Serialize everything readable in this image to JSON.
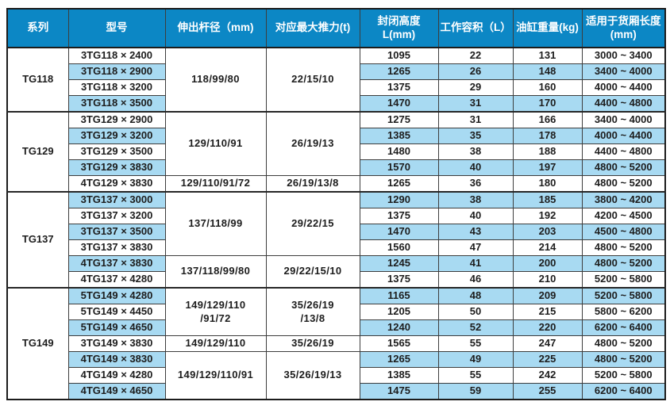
{
  "colors": {
    "header_bg": "#0c87c5",
    "stripe_bg": "#a8daf2",
    "border": "#3d3d3d",
    "text": "#1d1d1d",
    "header_text": "#ffffff"
  },
  "table": {
    "headers": [
      {
        "label": "系列"
      },
      {
        "label": "型号"
      },
      {
        "label": "伸出杆径（mm)"
      },
      {
        "label": "对应最大推力(t)"
      },
      {
        "label": "封闭高度L(mm)"
      },
      {
        "label": "工作容积（L）"
      },
      {
        "label": "油缸重量(kg)"
      },
      {
        "label": "适用于货厢长度\n(mm)"
      }
    ],
    "groups": [
      {
        "series": "TG118",
        "rod1": "118/99/80",
        "thrust1": "22/15/10",
        "rows": [
          {
            "model": "3TG118 × 2400",
            "closed_height": "1095",
            "volume": "22",
            "weight": "131",
            "box_length": "3000 ~ 3400"
          },
          {
            "model": "3TG118 × 2900",
            "closed_height": "1265",
            "volume": "26",
            "weight": "148",
            "box_length": "3400 ~ 4000"
          },
          {
            "model": "3TG118 × 3200",
            "closed_height": "1375",
            "volume": "29",
            "weight": "160",
            "box_length": "4000 ~ 4400"
          },
          {
            "model": "3TG118 × 3500",
            "closed_height": "1470",
            "volume": "31",
            "weight": "170",
            "box_length": "4400 ~ 4800"
          }
        ]
      },
      {
        "series": "TG129",
        "rod1": "129/110/91",
        "thrust1": "26/19/13",
        "rod2": "129/110/91/72",
        "thrust2": "26/19/13/8",
        "rows": [
          {
            "model": "3TG129 × 2900",
            "closed_height": "1275",
            "volume": "31",
            "weight": "166",
            "box_length": "3400 ~ 4000"
          },
          {
            "model": "3TG129 × 3200",
            "closed_height": "1385",
            "volume": "35",
            "weight": "178",
            "box_length": "4000 ~ 4400"
          },
          {
            "model": "3TG129 × 3500",
            "closed_height": "1480",
            "volume": "38",
            "weight": "188",
            "box_length": "4400 ~ 4800"
          },
          {
            "model": "3TG129 × 3830",
            "closed_height": "1570",
            "volume": "40",
            "weight": "197",
            "box_length": "4800 ~ 5200"
          },
          {
            "model": "4TG129 × 3830",
            "closed_height": "1265",
            "volume": "36",
            "weight": "180",
            "box_length": "4800 ~ 5200"
          }
        ]
      },
      {
        "series": "TG137",
        "rod1": "137/118/99",
        "thrust1": "29/22/15",
        "rod2": "137/118/99/80",
        "thrust2": "29/22/15/10",
        "rows": [
          {
            "model": "3TG137 × 3000",
            "closed_height": "1290",
            "volume": "38",
            "weight": "185",
            "box_length": "3800 ~ 4200"
          },
          {
            "model": "3TG137 × 3200",
            "closed_height": "1375",
            "volume": "40",
            "weight": "192",
            "box_length": "4200 ~ 4500"
          },
          {
            "model": "3TG137 × 3500",
            "closed_height": "1470",
            "volume": "43",
            "weight": "203",
            "box_length": "4500 ~ 4800"
          },
          {
            "model": "3TG137 × 3830",
            "closed_height": "1560",
            "volume": "47",
            "weight": "214",
            "box_length": "4800 ~ 5200"
          },
          {
            "model": "4TG137 × 3830",
            "closed_height": "1245",
            "volume": "41",
            "weight": "200",
            "box_length": "4800 ~ 5200"
          },
          {
            "model": "4TG137 × 4280",
            "closed_height": "1375",
            "volume": "46",
            "weight": "210",
            "box_length": "5200 ~ 5800"
          }
        ]
      },
      {
        "series": "TG149",
        "rod1": "149/129/110\n/91/72",
        "thrust1": "35/26/19\n/13/8",
        "rod2": "149/129/110",
        "thrust2": "35/26/19",
        "rod3": "149/129/110/91",
        "thrust3": "35/26/19/13",
        "rows": [
          {
            "model": "5TG149 × 4280",
            "closed_height": "1165",
            "volume": "48",
            "weight": "209",
            "box_length": "5200 ~ 5800"
          },
          {
            "model": "5TG149 × 4450",
            "closed_height": "1205",
            "volume": "50",
            "weight": "215",
            "box_length": "5800 ~ 6200"
          },
          {
            "model": "5TG149 × 4650",
            "closed_height": "1240",
            "volume": "52",
            "weight": "220",
            "box_length": "6200 ~ 6400"
          },
          {
            "model": "3TG149 × 3830",
            "closed_height": "1565",
            "volume": "55",
            "weight": "247",
            "box_length": "4800 ~ 5200"
          },
          {
            "model": "4TG149 × 3830",
            "closed_height": "1265",
            "volume": "49",
            "weight": "225",
            "box_length": "4800 ~ 5200"
          },
          {
            "model": "4TG149 × 4280",
            "closed_height": "1385",
            "volume": "55",
            "weight": "242",
            "box_length": "5200 ~ 5800"
          },
          {
            "model": "4TG149 × 4650",
            "closed_height": "1475",
            "volume": "59",
            "weight": "255",
            "box_length": "6200 ~ 6400"
          }
        ]
      }
    ]
  }
}
